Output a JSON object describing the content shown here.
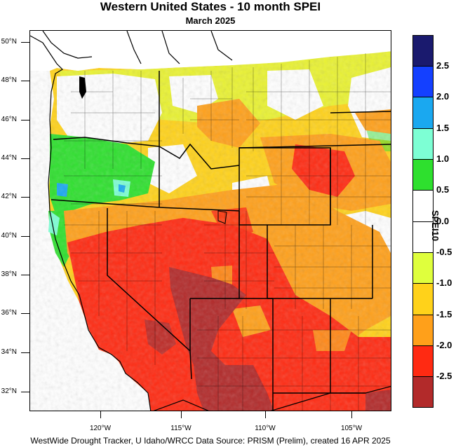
{
  "title": "Western United States - 10 month SPEI",
  "subtitle": "March 2025",
  "footer": "WestWide Drought Tracker, U Idaho/WRCC Data Source: PRISM (Prelim), created 16 APR 2025",
  "latitude_labels": [
    "50°N",
    "48°N",
    "46°N",
    "44°N",
    "42°N",
    "40°N",
    "38°N",
    "36°N",
    "34°N",
    "32°N"
  ],
  "longitude_labels": [
    "120°W",
    "115°W",
    "110°W",
    "105°W"
  ],
  "legend": {
    "title": "SPEI10",
    "colors": [
      "#1a1a6e",
      "#1440ff",
      "#1aa8f0",
      "#7dffd4",
      "#2ee02e",
      "#ffffff",
      "#ffffff",
      "#dfff3d",
      "#ffd21a",
      "#ffa01a",
      "#ff2a12",
      "#b22a2a"
    ],
    "labels": [
      "2.5",
      "2.0",
      "1.5",
      "1.0",
      "0.5",
      "0.0",
      "-0.5",
      "-1.0",
      "-1.5",
      "-2.0",
      "-2.5"
    ]
  }
}
